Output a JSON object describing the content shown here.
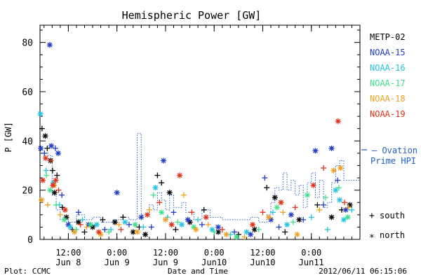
{
  "chart_data": {
    "type": "scatter",
    "title": "Hemispheric Power [GW]",
    "ylabel": "P [GW]",
    "xlabel": "Date and Time",
    "ylim": [
      0,
      87
    ],
    "xlim": [
      0,
      79
    ],
    "x_units": "hours since 2012-06-07 05:00",
    "yticks": [
      0,
      20,
      40,
      60,
      80
    ],
    "xticks": [
      {
        "pos": 7,
        "line1": "12:00",
        "line2": "Jun 8"
      },
      {
        "pos": 19,
        "line1": "0:00",
        "line2": "Jun 9"
      },
      {
        "pos": 31,
        "line1": "12:00",
        "line2": "Jun 9"
      },
      {
        "pos": 43,
        "line1": "0:00",
        "line2": "Jun10"
      },
      {
        "pos": 55,
        "line1": "12:00",
        "line2": "Jun10"
      },
      {
        "pos": 67,
        "line1": "0:00",
        "line2": "Jun11"
      }
    ],
    "legend": [
      {
        "name": "METP-02",
        "color": "#000000"
      },
      {
        "name": "NOAA-15",
        "color": "#1f3cc4"
      },
      {
        "name": "NOAA-16",
        "color": "#22c4e0"
      },
      {
        "name": "NOAA-17",
        "color": "#3ee08a"
      },
      {
        "name": "NOAA-18",
        "color": "#f0a020"
      },
      {
        "name": "NOAA-19",
        "color": "#e03018"
      }
    ],
    "ovation_label": [
      "– Ovation",
      "Prime HPI"
    ],
    "ovation_color": "#1f5fc4",
    "marker_key": [
      {
        "symbol": "+",
        "label": "south"
      },
      {
        "symbol": "*",
        "label": "north"
      }
    ],
    "ovation_series": [
      [
        0,
        35
      ],
      [
        2,
        34
      ],
      [
        3,
        18
      ],
      [
        4,
        12
      ],
      [
        5,
        8
      ],
      [
        7,
        7
      ],
      [
        9,
        10
      ],
      [
        11,
        8
      ],
      [
        13,
        9
      ],
      [
        15,
        7
      ],
      [
        18,
        8
      ],
      [
        20,
        9
      ],
      [
        22,
        8
      ],
      [
        24,
        43
      ],
      [
        25,
        10
      ],
      [
        27,
        14
      ],
      [
        28,
        12
      ],
      [
        29,
        19
      ],
      [
        30,
        16
      ],
      [
        31,
        12
      ],
      [
        32,
        18
      ],
      [
        33,
        13
      ],
      [
        35,
        15
      ],
      [
        36,
        11
      ],
      [
        38,
        8
      ],
      [
        40,
        12
      ],
      [
        42,
        9
      ],
      [
        45,
        8
      ],
      [
        49,
        8
      ],
      [
        52,
        9
      ],
      [
        54,
        7
      ],
      [
        56,
        10
      ],
      [
        57,
        15
      ],
      [
        58,
        21
      ],
      [
        59,
        20
      ],
      [
        60,
        27
      ],
      [
        61,
        20
      ],
      [
        62,
        24
      ],
      [
        63,
        18
      ],
      [
        64,
        22
      ],
      [
        65,
        13
      ],
      [
        66,
        23
      ],
      [
        67,
        27
      ],
      [
        68,
        17
      ],
      [
        69,
        24
      ],
      [
        70,
        13
      ],
      [
        71,
        15
      ],
      [
        72,
        23
      ],
      [
        73,
        30
      ],
      [
        74,
        32
      ],
      [
        75,
        24
      ],
      [
        79,
        24
      ]
    ],
    "points": [
      {
        "x": 0.5,
        "y": 45,
        "c": "#000000",
        "m": "+"
      },
      {
        "x": 1.3,
        "y": 42,
        "c": "#000000",
        "m": "*"
      },
      {
        "x": 1.8,
        "y": 37,
        "c": "#000000",
        "m": "+"
      },
      {
        "x": 2.6,
        "y": 32,
        "c": "#000000",
        "m": "*"
      },
      {
        "x": 3.1,
        "y": 28,
        "c": "#000000",
        "m": "+"
      },
      {
        "x": 3.6,
        "y": 19,
        "c": "#000000",
        "m": "*"
      },
      {
        "x": 4.2,
        "y": 26,
        "c": "#000000",
        "m": "+"
      },
      {
        "x": 5.5,
        "y": 13,
        "c": "#000000",
        "m": "+"
      },
      {
        "x": 6.5,
        "y": 9,
        "c": "#000000",
        "m": "*"
      },
      {
        "x": 8,
        "y": 4,
        "c": "#000000",
        "m": "+"
      },
      {
        "x": 9.5,
        "y": 7,
        "c": "#000000",
        "m": "*"
      },
      {
        "x": 11,
        "y": 3,
        "c": "#000000",
        "m": "+"
      },
      {
        "x": 13,
        "y": 5,
        "c": "#000000",
        "m": "*"
      },
      {
        "x": 15.5,
        "y": 8,
        "c": "#000000",
        "m": "+"
      },
      {
        "x": 18.5,
        "y": 7,
        "c": "#000000",
        "m": "*"
      },
      {
        "x": 20.5,
        "y": 9,
        "c": "#000000",
        "m": "+"
      },
      {
        "x": 23,
        "y": 3,
        "c": "#000000",
        "m": "*"
      },
      {
        "x": 24.5,
        "y": 5,
        "c": "#000000",
        "m": "+"
      },
      {
        "x": 26,
        "y": 2,
        "c": "#000000",
        "m": "*"
      },
      {
        "x": 29,
        "y": 26,
        "c": "#000000",
        "m": "+"
      },
      {
        "x": 30,
        "y": 23,
        "c": "#000000",
        "m": "+"
      },
      {
        "x": 32,
        "y": 19,
        "c": "#000000",
        "m": "*"
      },
      {
        "x": 33.5,
        "y": 4,
        "c": "#000000",
        "m": "+"
      },
      {
        "x": 37,
        "y": 7,
        "c": "#000000",
        "m": "*"
      },
      {
        "x": 40.5,
        "y": 12,
        "c": "#000000",
        "m": "+"
      },
      {
        "x": 44,
        "y": 3,
        "c": "#000000",
        "m": "*"
      },
      {
        "x": 49,
        "y": 2,
        "c": "#000000",
        "m": "+"
      },
      {
        "x": 53,
        "y": 4,
        "c": "#000000",
        "m": "*"
      },
      {
        "x": 56,
        "y": 21,
        "c": "#000000",
        "m": "+"
      },
      {
        "x": 58,
        "y": 17,
        "c": "#000000",
        "m": "*"
      },
      {
        "x": 60.5,
        "y": 3,
        "c": "#000000",
        "m": "+"
      },
      {
        "x": 64,
        "y": 8,
        "c": "#000000",
        "m": "*"
      },
      {
        "x": 68.5,
        "y": 14,
        "c": "#000000",
        "m": "+"
      },
      {
        "x": 72,
        "y": 9,
        "c": "#000000",
        "m": "*"
      },
      {
        "x": 74.5,
        "y": 12,
        "c": "#000000",
        "m": "+"
      },
      {
        "x": 76.5,
        "y": 14,
        "c": "#000000",
        "m": "*"
      },
      {
        "x": 0.2,
        "y": 37,
        "c": "#1f3cc4",
        "m": "*"
      },
      {
        "x": 1.1,
        "y": 35,
        "c": "#1f3cc4",
        "m": "+"
      },
      {
        "x": 2.4,
        "y": 79,
        "c": "#1f3cc4",
        "m": "*"
      },
      {
        "x": 2.8,
        "y": 38,
        "c": "#1f3cc4",
        "m": "*"
      },
      {
        "x": 3.8,
        "y": 37,
        "c": "#1f3cc4",
        "m": "+"
      },
      {
        "x": 4.5,
        "y": 35,
        "c": "#1f3cc4",
        "m": "*"
      },
      {
        "x": 5.4,
        "y": 18,
        "c": "#1f3cc4",
        "m": "+"
      },
      {
        "x": 7,
        "y": 6,
        "c": "#1f3cc4",
        "m": "*"
      },
      {
        "x": 9.5,
        "y": 11,
        "c": "#1f3cc4",
        "m": "+"
      },
      {
        "x": 12,
        "y": 6,
        "c": "#1f3cc4",
        "m": "*"
      },
      {
        "x": 16,
        "y": 4,
        "c": "#1f3cc4",
        "m": "+"
      },
      {
        "x": 19,
        "y": 19,
        "c": "#1f3cc4",
        "m": "*"
      },
      {
        "x": 22,
        "y": 6,
        "c": "#1f3cc4",
        "m": "+"
      },
      {
        "x": 25,
        "y": 9,
        "c": "#1f3cc4",
        "m": "*"
      },
      {
        "x": 27.5,
        "y": 5,
        "c": "#1f3cc4",
        "m": "+"
      },
      {
        "x": 30.5,
        "y": 32,
        "c": "#1f3cc4",
        "m": "*"
      },
      {
        "x": 33,
        "y": 11,
        "c": "#1f3cc4",
        "m": "+"
      },
      {
        "x": 36.5,
        "y": 8,
        "c": "#1f3cc4",
        "m": "*"
      },
      {
        "x": 40,
        "y": 6,
        "c": "#1f3cc4",
        "m": "+"
      },
      {
        "x": 44,
        "y": 5,
        "c": "#1f3cc4",
        "m": "*"
      },
      {
        "x": 48,
        "y": 3,
        "c": "#1f3cc4",
        "m": "+"
      },
      {
        "x": 52,
        "y": 2,
        "c": "#1f3cc4",
        "m": "*"
      },
      {
        "x": 55.5,
        "y": 25,
        "c": "#1f3cc4",
        "m": "+"
      },
      {
        "x": 57,
        "y": 8,
        "c": "#1f3cc4",
        "m": "*"
      },
      {
        "x": 59,
        "y": 5,
        "c": "#1f3cc4",
        "m": "+"
      },
      {
        "x": 62,
        "y": 10,
        "c": "#1f3cc4",
        "m": "*"
      },
      {
        "x": 65,
        "y": 8,
        "c": "#1f3cc4",
        "m": "+"
      },
      {
        "x": 68,
        "y": 36,
        "c": "#1f3cc4",
        "m": "*"
      },
      {
        "x": 70,
        "y": 14,
        "c": "#1f3cc4",
        "m": "+"
      },
      {
        "x": 72,
        "y": 37,
        "c": "#1f3cc4",
        "m": "*"
      },
      {
        "x": 73.5,
        "y": 24,
        "c": "#1f3cc4",
        "m": "+"
      },
      {
        "x": 75.5,
        "y": 12,
        "c": "#1f3cc4",
        "m": "*"
      },
      {
        "x": 0.1,
        "y": 51,
        "c": "#22c4e0",
        "m": "*"
      },
      {
        "x": 1.5,
        "y": 28,
        "c": "#22c4e0",
        "m": "+"
      },
      {
        "x": 3.3,
        "y": 23,
        "c": "#22c4e0",
        "m": "*"
      },
      {
        "x": 4.8,
        "y": 14,
        "c": "#22c4e0",
        "m": "+"
      },
      {
        "x": 7.5,
        "y": 5,
        "c": "#22c4e0",
        "m": "*"
      },
      {
        "x": 10.5,
        "y": 8,
        "c": "#22c4e0",
        "m": "+"
      },
      {
        "x": 14,
        "y": 6,
        "c": "#22c4e0",
        "m": "*"
      },
      {
        "x": 17.5,
        "y": 4,
        "c": "#22c4e0",
        "m": "+"
      },
      {
        "x": 21,
        "y": 7,
        "c": "#22c4e0",
        "m": "*"
      },
      {
        "x": 25.5,
        "y": 5,
        "c": "#22c4e0",
        "m": "+"
      },
      {
        "x": 28.5,
        "y": 21,
        "c": "#22c4e0",
        "m": "*"
      },
      {
        "x": 31.5,
        "y": 9,
        "c": "#22c4e0",
        "m": "+"
      },
      {
        "x": 35,
        "y": 6,
        "c": "#22c4e0",
        "m": "*"
      },
      {
        "x": 39,
        "y": 8,
        "c": "#22c4e0",
        "m": "+"
      },
      {
        "x": 42.5,
        "y": 4,
        "c": "#22c4e0",
        "m": "*"
      },
      {
        "x": 47,
        "y": 2,
        "c": "#22c4e0",
        "m": "+"
      },
      {
        "x": 51,
        "y": 3,
        "c": "#22c4e0",
        "m": "*"
      },
      {
        "x": 57.5,
        "y": 11,
        "c": "#22c4e0",
        "m": "+"
      },
      {
        "x": 61,
        "y": 6,
        "c": "#22c4e0",
        "m": "*"
      },
      {
        "x": 67,
        "y": 9,
        "c": "#22c4e0",
        "m": "+"
      },
      {
        "x": 71,
        "y": 4,
        "c": "#22c4e0",
        "m": "+"
      },
      {
        "x": 73,
        "y": 20,
        "c": "#22c4e0",
        "m": "*"
      },
      {
        "x": 74,
        "y": 16,
        "c": "#22c4e0",
        "m": "*"
      },
      {
        "x": 75,
        "y": 8,
        "c": "#22c4e0",
        "m": "*"
      },
      {
        "x": 77,
        "y": 12,
        "c": "#22c4e0",
        "m": "+"
      },
      {
        "x": 1.6,
        "y": 26,
        "c": "#3ee08a",
        "m": "+"
      },
      {
        "x": 2.5,
        "y": 20,
        "c": "#3ee08a",
        "m": "*"
      },
      {
        "x": 4,
        "y": 14,
        "c": "#3ee08a",
        "m": "+"
      },
      {
        "x": 6,
        "y": 8,
        "c": "#3ee08a",
        "m": "*"
      },
      {
        "x": 9,
        "y": 4,
        "c": "#3ee08a",
        "m": "+"
      },
      {
        "x": 12.5,
        "y": 6,
        "c": "#3ee08a",
        "m": "*"
      },
      {
        "x": 17,
        "y": 3,
        "c": "#3ee08a",
        "m": "+"
      },
      {
        "x": 23.5,
        "y": 6,
        "c": "#3ee08a",
        "m": "*"
      },
      {
        "x": 28,
        "y": 18,
        "c": "#3ee08a",
        "m": "+"
      },
      {
        "x": 30,
        "y": 11,
        "c": "#3ee08a",
        "m": "*"
      },
      {
        "x": 34,
        "y": 7,
        "c": "#3ee08a",
        "m": "+"
      },
      {
        "x": 38,
        "y": 5,
        "c": "#3ee08a",
        "m": "*"
      },
      {
        "x": 43,
        "y": 3,
        "c": "#3ee08a",
        "m": "+"
      },
      {
        "x": 48.5,
        "y": 1,
        "c": "#3ee08a",
        "m": "*"
      },
      {
        "x": 54,
        "y": 4,
        "c": "#3ee08a",
        "m": "+"
      },
      {
        "x": 58.5,
        "y": 13,
        "c": "#3ee08a",
        "m": "*"
      },
      {
        "x": 62.5,
        "y": 7,
        "c": "#3ee08a",
        "m": "+"
      },
      {
        "x": 66,
        "y": 18,
        "c": "#3ee08a",
        "m": "*"
      },
      {
        "x": 70.5,
        "y": 17,
        "c": "#3ee08a",
        "m": "+"
      },
      {
        "x": 73.8,
        "y": 21,
        "c": "#3ee08a",
        "m": "+"
      },
      {
        "x": 76,
        "y": 9,
        "c": "#3ee08a",
        "m": "*"
      },
      {
        "x": 0.4,
        "y": 16,
        "c": "#f0a020",
        "m": "*"
      },
      {
        "x": 1.9,
        "y": 14,
        "c": "#f0a020",
        "m": "+"
      },
      {
        "x": 3.5,
        "y": 22,
        "c": "#f0a020",
        "m": "*"
      },
      {
        "x": 5,
        "y": 10,
        "c": "#f0a020",
        "m": "+"
      },
      {
        "x": 8.5,
        "y": 3,
        "c": "#f0a020",
        "m": "*"
      },
      {
        "x": 11.5,
        "y": 5,
        "c": "#f0a020",
        "m": "+"
      },
      {
        "x": 15,
        "y": 2,
        "c": "#f0a020",
        "m": "*"
      },
      {
        "x": 19.5,
        "y": 6,
        "c": "#f0a020",
        "m": "+"
      },
      {
        "x": 24,
        "y": 3,
        "c": "#f0a020",
        "m": "*"
      },
      {
        "x": 27,
        "y": 12,
        "c": "#f0a020",
        "m": "+"
      },
      {
        "x": 31,
        "y": 8,
        "c": "#f0a020",
        "m": "*"
      },
      {
        "x": 35.5,
        "y": 18,
        "c": "#f0a020",
        "m": "+"
      },
      {
        "x": 38.5,
        "y": 4,
        "c": "#f0a020",
        "m": "*"
      },
      {
        "x": 41.5,
        "y": 6,
        "c": "#f0a020",
        "m": "+"
      },
      {
        "x": 46,
        "y": 2,
        "c": "#f0a020",
        "m": "*"
      },
      {
        "x": 50.5,
        "y": 1,
        "c": "#f0a020",
        "m": "+"
      },
      {
        "x": 56.5,
        "y": 9,
        "c": "#f0a020",
        "m": "*"
      },
      {
        "x": 60,
        "y": 11,
        "c": "#f0a020",
        "m": "+"
      },
      {
        "x": 63.5,
        "y": 2,
        "c": "#f0a020",
        "m": "*"
      },
      {
        "x": 69,
        "y": 12,
        "c": "#f0a020",
        "m": "+"
      },
      {
        "x": 72.5,
        "y": 28,
        "c": "#f0a020",
        "m": "*"
      },
      {
        "x": 74.2,
        "y": 29,
        "c": "#f0a020",
        "m": "*"
      },
      {
        "x": 76.2,
        "y": 13,
        "c": "#f0a020",
        "m": "+"
      },
      {
        "x": 0.7,
        "y": 24,
        "c": "#e03018",
        "m": "*"
      },
      {
        "x": 1.4,
        "y": 33,
        "c": "#e03018",
        "m": "*"
      },
      {
        "x": 2.7,
        "y": 32,
        "c": "#e03018",
        "m": "+"
      },
      {
        "x": 3.2,
        "y": 22,
        "c": "#e03018",
        "m": "*"
      },
      {
        "x": 3.9,
        "y": 24,
        "c": "#e03018",
        "m": "*"
      },
      {
        "x": 4.6,
        "y": 20,
        "c": "#e03018",
        "m": "+"
      },
      {
        "x": 6.2,
        "y": 12,
        "c": "#e03018",
        "m": "*"
      },
      {
        "x": 10,
        "y": 6,
        "c": "#e03018",
        "m": "+"
      },
      {
        "x": 14.5,
        "y": 3,
        "c": "#e03018",
        "m": "*"
      },
      {
        "x": 20,
        "y": 4,
        "c": "#e03018",
        "m": "+"
      },
      {
        "x": 26.5,
        "y": 10,
        "c": "#e03018",
        "m": "*"
      },
      {
        "x": 29.5,
        "y": 15,
        "c": "#e03018",
        "m": "+"
      },
      {
        "x": 32.5,
        "y": 6,
        "c": "#e03018",
        "m": "*"
      },
      {
        "x": 34.5,
        "y": 26,
        "c": "#e03018",
        "m": "*"
      },
      {
        "x": 37.5,
        "y": 11,
        "c": "#e03018",
        "m": "+"
      },
      {
        "x": 41,
        "y": 9,
        "c": "#e03018",
        "m": "*"
      },
      {
        "x": 45,
        "y": 4,
        "c": "#e03018",
        "m": "+"
      },
      {
        "x": 52.5,
        "y": 6,
        "c": "#e03018",
        "m": "*"
      },
      {
        "x": 55,
        "y": 11,
        "c": "#e03018",
        "m": "+"
      },
      {
        "x": 59.5,
        "y": 15,
        "c": "#e03018",
        "m": "*"
      },
      {
        "x": 63,
        "y": 13,
        "c": "#e03018",
        "m": "+"
      },
      {
        "x": 67.5,
        "y": 22,
        "c": "#e03018",
        "m": "*"
      },
      {
        "x": 70,
        "y": 29,
        "c": "#e03018",
        "m": "+"
      },
      {
        "x": 73.6,
        "y": 48,
        "c": "#e03018",
        "m": "*"
      },
      {
        "x": 75.2,
        "y": 15,
        "c": "#e03018",
        "m": "+"
      }
    ]
  },
  "footer": {
    "plot_credit": "Plot: CCMC",
    "timestamp": "2012/06/11 06:15:06"
  }
}
